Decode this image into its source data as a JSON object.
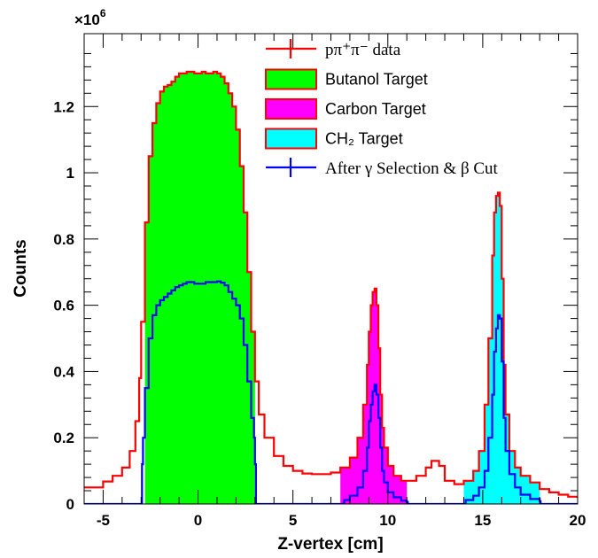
{
  "chart_data": {
    "type": "area",
    "title": "",
    "xlabel": "Z-vertex [cm]",
    "ylabel": "Counts",
    "y_multiplier": "×10",
    "y_multiplier_exp": "6",
    "xlim": [
      -6,
      20
    ],
    "ylim": [
      0,
      1.42
    ],
    "x_ticks": [
      {
        "value": -5,
        "label": "-5"
      },
      {
        "value": 0,
        "label": "0"
      },
      {
        "value": 5,
        "label": "5"
      },
      {
        "value": 10,
        "label": "10"
      },
      {
        "value": 15,
        "label": "15"
      },
      {
        "value": 20,
        "label": "20"
      }
    ],
    "y_ticks": [
      {
        "value": 0,
        "label": "0"
      },
      {
        "value": 0.2,
        "label": "0.2"
      },
      {
        "value": 0.4,
        "label": "0.4"
      },
      {
        "value": 0.6,
        "label": "0.6"
      },
      {
        "value": 0.8,
        "label": "0.8"
      },
      {
        "value": 1.0,
        "label": "1"
      },
      {
        "value": 1.2,
        "label": "1.2"
      }
    ],
    "legend_placement": "top-right",
    "legend": [
      {
        "label": "pπ⁺π⁻ data",
        "style": "line-cross",
        "color": "#ff0000"
      },
      {
        "label": "Butanol Target",
        "style": "box",
        "fill": "#00ff00",
        "stroke": "#ff0000"
      },
      {
        "label": "Carbon Target",
        "style": "box",
        "fill": "#ff00ff",
        "stroke": "#ff0000"
      },
      {
        "label": "CH₂ Target",
        "style": "box",
        "fill": "#00ffff",
        "stroke": "#ff0000"
      },
      {
        "label": "After γ Selection & β Cut",
        "style": "line-cross",
        "color": "#0000ff"
      }
    ],
    "series": [
      {
        "name": "pπ⁺π⁻ data",
        "color": "#ff0000",
        "x": [
          -6,
          -5,
          -4.5,
          -4,
          -3.6,
          -3.3,
          -3.1,
          -3.0,
          -2.8,
          -2.6,
          -2.4,
          -2.2,
          -2.0,
          -1.8,
          -1.6,
          -1.4,
          -1.2,
          -1.0,
          -0.8,
          -0.6,
          -0.4,
          -0.2,
          0,
          0.2,
          0.4,
          0.6,
          0.8,
          1.0,
          1.2,
          1.4,
          1.6,
          1.8,
          2.0,
          2.2,
          2.4,
          2.6,
          2.8,
          3.0,
          3.2,
          3.5,
          4.0,
          4.5,
          5.0,
          5.5,
          6.0,
          6.5,
          7.0,
          7.5,
          8.0,
          8.4,
          8.7,
          8.9,
          9.0,
          9.1,
          9.2,
          9.3,
          9.4,
          9.5,
          9.6,
          9.7,
          9.8,
          10.0,
          10.3,
          10.7,
          11.0,
          11.5,
          12.0,
          12.3,
          12.5,
          12.7,
          13.0,
          13.5,
          14.0,
          14.5,
          14.8,
          15.1,
          15.3,
          15.5,
          15.6,
          15.7,
          15.8,
          15.9,
          16.0,
          16.1,
          16.2,
          16.4,
          16.7,
          17.0,
          17.5,
          18.0,
          18.5,
          19.0,
          19.5,
          20.0
        ],
        "y": [
          0.05,
          0.068,
          0.085,
          0.11,
          0.16,
          0.25,
          0.38,
          0.55,
          0.85,
          1.05,
          1.15,
          1.21,
          1.245,
          1.26,
          1.265,
          1.275,
          1.29,
          1.3,
          1.3,
          1.305,
          1.305,
          1.3,
          1.3,
          1.305,
          1.3,
          1.3,
          1.305,
          1.3,
          1.29,
          1.27,
          1.24,
          1.2,
          1.13,
          1.02,
          0.88,
          0.7,
          0.52,
          0.37,
          0.27,
          0.2,
          0.145,
          0.115,
          0.1,
          0.092,
          0.09,
          0.09,
          0.095,
          0.11,
          0.14,
          0.2,
          0.3,
          0.42,
          0.52,
          0.6,
          0.64,
          0.65,
          0.6,
          0.47,
          0.33,
          0.23,
          0.17,
          0.115,
          0.085,
          0.07,
          0.07,
          0.085,
          0.11,
          0.13,
          0.13,
          0.115,
          0.07,
          0.06,
          0.07,
          0.1,
          0.16,
          0.3,
          0.5,
          0.75,
          0.88,
          0.93,
          0.94,
          0.9,
          0.68,
          0.42,
          0.27,
          0.16,
          0.11,
          0.085,
          0.065,
          0.045,
          0.035,
          0.028,
          0.022,
          0.018
        ]
      },
      {
        "name": "After γ Selection & β Cut",
        "color": "#0000ff",
        "x": [
          -6,
          -3.0,
          -2.95,
          -2.9,
          -2.8,
          -2.6,
          -2.4,
          -2.2,
          -2.0,
          -1.8,
          -1.6,
          -1.4,
          -1.2,
          -1.0,
          -0.8,
          -0.6,
          -0.4,
          -0.2,
          0,
          0.2,
          0.4,
          0.6,
          0.8,
          1.0,
          1.2,
          1.4,
          1.6,
          1.8,
          2.0,
          2.2,
          2.4,
          2.6,
          2.8,
          2.95,
          3.0,
          3.05,
          7.6,
          7.7,
          8.0,
          8.4,
          8.7,
          8.9,
          9.0,
          9.1,
          9.2,
          9.3,
          9.4,
          9.5,
          9.6,
          9.7,
          9.8,
          10.0,
          10.3,
          10.7,
          11.0,
          11.05,
          14.0,
          14.1,
          14.5,
          14.8,
          15.1,
          15.3,
          15.5,
          15.6,
          15.7,
          15.8,
          15.9,
          16.0,
          16.1,
          16.2,
          16.4,
          16.7,
          17.0,
          17.5,
          18.0,
          18.05,
          20.0
        ],
        "y": [
          0,
          0,
          0.12,
          0.2,
          0.35,
          0.5,
          0.57,
          0.6,
          0.615,
          0.625,
          0.635,
          0.645,
          0.655,
          0.66,
          0.665,
          0.67,
          0.67,
          0.665,
          0.665,
          0.665,
          0.67,
          0.67,
          0.67,
          0.672,
          0.668,
          0.66,
          0.64,
          0.62,
          0.6,
          0.56,
          0.48,
          0.37,
          0.26,
          0.2,
          0.12,
          0,
          0,
          0.012,
          0.025,
          0.05,
          0.1,
          0.17,
          0.25,
          0.3,
          0.34,
          0.36,
          0.33,
          0.26,
          0.17,
          0.1,
          0.065,
          0.035,
          0.02,
          0.01,
          0.006,
          0,
          0,
          0.012,
          0.025,
          0.05,
          0.1,
          0.2,
          0.33,
          0.46,
          0.53,
          0.57,
          0.56,
          0.43,
          0.26,
          0.16,
          0.09,
          0.05,
          0.028,
          0.015,
          0.008,
          0,
          0
        ]
      }
    ],
    "filled_regions": [
      {
        "name": "Butanol Target",
        "fill": "#00ff00",
        "x_range": [
          -2.8,
          3.0
        ]
      },
      {
        "name": "Carbon Target",
        "fill": "#ff00ff",
        "x_range": [
          7.5,
          11.0
        ]
      },
      {
        "name": "CH₂ Target",
        "fill": "#00ffff",
        "x_range": [
          14.0,
          18.0
        ]
      }
    ]
  }
}
